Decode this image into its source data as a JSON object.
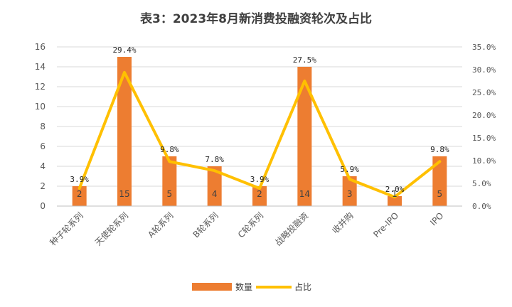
{
  "chart_data": {
    "type": "bar+line",
    "title": "表3：2023年8月新消费投融资轮次及占比",
    "categories": [
      "种子轮系列",
      "天使轮系列",
      "A轮系列",
      "B轮系列",
      "C轮系列",
      "战略投融资",
      "收并购",
      "Pre-IPO",
      "IPO"
    ],
    "series": [
      {
        "name": "数量",
        "type": "bar",
        "axis": "left",
        "color": "#ED7D31",
        "values": [
          2,
          15,
          5,
          4,
          2,
          14,
          3,
          1,
          5
        ],
        "labels": [
          "2",
          "15",
          "5",
          "4",
          "2",
          "14",
          "3",
          "1",
          "5"
        ]
      },
      {
        "name": "占比",
        "type": "line",
        "axis": "right",
        "color": "#FFC000",
        "values": [
          3.9,
          29.4,
          9.8,
          7.8,
          3.9,
          27.5,
          5.9,
          2.0,
          9.8
        ],
        "labels": [
          "3.9%",
          "29.4%",
          "9.8%",
          "7.8%",
          "3.9%",
          "27.5%",
          "5.9%",
          "2.0%",
          "9.8%"
        ]
      }
    ],
    "y_left": {
      "ylim": [
        0,
        16
      ],
      "ticks": [
        "0",
        "2",
        "4",
        "6",
        "8",
        "10",
        "12",
        "14",
        "16"
      ]
    },
    "y_right": {
      "ylim": [
        0,
        35
      ],
      "ticks": [
        "0.0%",
        "5.0%",
        "10.0%",
        "15.0%",
        "20.0%",
        "25.0%",
        "30.0%",
        "35.0%"
      ]
    },
    "grid": true,
    "legend": {
      "position": "bottom",
      "items": [
        "数量",
        "占比"
      ]
    }
  }
}
